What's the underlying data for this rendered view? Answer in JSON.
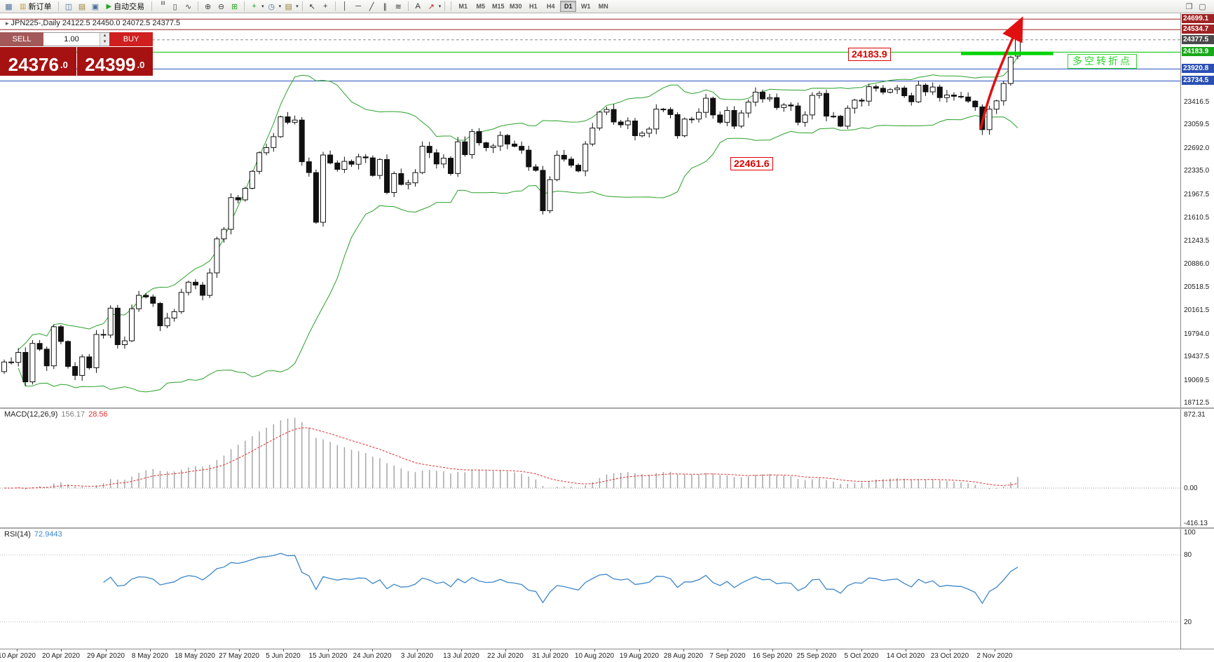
{
  "toolbar": {
    "items": [
      {
        "type": "icon",
        "name": "chart-window-icon",
        "glyph": "▦",
        "color": "#4a6f9c"
      },
      {
        "type": "button",
        "name": "new-order-button",
        "label": "新订单",
        "glyph": "▥",
        "color": "#c09a2e"
      },
      {
        "type": "sep"
      },
      {
        "type": "icon",
        "name": "charts-grid-icon",
        "glyph": "◫",
        "color": "#4a6f9c"
      },
      {
        "type": "icon",
        "name": "profiles-icon",
        "glyph": "▤",
        "color": "#98833a"
      },
      {
        "type": "icon",
        "name": "data-window-icon",
        "glyph": "▣",
        "color": "#4a6f9c"
      },
      {
        "type": "button",
        "name": "auto-trading-button",
        "label": "自动交易",
        "glyph": "▶",
        "color": "#27a327"
      },
      {
        "type": "sep"
      },
      {
        "type": "icon",
        "name": "bars-chart-icon",
        "glyph": "≡",
        "rot": true,
        "color": "#444"
      },
      {
        "type": "icon",
        "name": "candlestick-chart-icon",
        "glyph": "▯",
        "color": "#444"
      },
      {
        "type": "icon",
        "name": "line-chart-icon",
        "glyph": "∿",
        "color": "#444"
      },
      {
        "type": "sep"
      },
      {
        "type": "icon",
        "name": "zoom-in-icon",
        "glyph": "⊕",
        "color": "#444"
      },
      {
        "type": "icon",
        "name": "zoom-out-icon",
        "glyph": "⊖",
        "color": "#444"
      },
      {
        "type": "icon",
        "name": "tile-windows-icon",
        "glyph": "⊞",
        "color": "#27a327"
      },
      {
        "type": "sep"
      },
      {
        "type": "icon",
        "name": "indicators-icon",
        "glyph": "+",
        "color": "#1e9e1e"
      },
      {
        "type": "caret",
        "glyph": "▾"
      },
      {
        "type": "icon",
        "name": "periods-icon",
        "glyph": "◷",
        "color": "#4a6f9c"
      },
      {
        "type": "caret",
        "glyph": "▾"
      },
      {
        "type": "icon",
        "name": "templates-icon",
        "glyph": "▤",
        "color": "#98833a"
      },
      {
        "type": "caret",
        "glyph": "▾"
      },
      {
        "type": "sep"
      },
      {
        "type": "icon",
        "name": "cursor-icon",
        "glyph": "↖",
        "color": "#333"
      },
      {
        "type": "icon",
        "name": "crosshair-icon",
        "glyph": "+",
        "color": "#333"
      },
      {
        "type": "sep"
      },
      {
        "type": "icon",
        "name": "vertical-line-icon",
        "glyph": "│",
        "color": "#333"
      },
      {
        "type": "icon",
        "name": "horizontal-line-icon",
        "glyph": "─",
        "color": "#333"
      },
      {
        "type": "icon",
        "name": "trendline-icon",
        "glyph": "╱",
        "color": "#333"
      },
      {
        "type": "icon",
        "name": "channel-icon",
        "glyph": "∥",
        "color": "#333"
      },
      {
        "type": "icon",
        "name": "fibonacci-icon",
        "glyph": "≋",
        "color": "#333"
      },
      {
        "type": "sep"
      },
      {
        "type": "icon",
        "name": "text-tool-icon",
        "glyph": "A",
        "color": "#333"
      },
      {
        "type": "icon",
        "name": "arrows-tool-icon",
        "glyph": "↗",
        "color": "#b22222"
      },
      {
        "type": "caret",
        "glyph": "▾"
      },
      {
        "type": "sep"
      }
    ],
    "timeframes": [
      "M1",
      "M5",
      "M15",
      "M30",
      "H1",
      "H4",
      "D1",
      "W1",
      "MN"
    ],
    "active_timeframe": "D1",
    "right_icons": [
      {
        "name": "dock-window-icon",
        "glyph": "❐"
      },
      {
        "name": "window-list-icon",
        "glyph": "▢"
      }
    ]
  },
  "order_panel": {
    "sell_label": "SELL",
    "buy_label": "BUY",
    "volume": "1.00",
    "spin_up": "▴",
    "spin_down": "▾",
    "sell_price_main": "24376",
    "sell_price_frac": ".0",
    "buy_price_main": "24399",
    "buy_price_frac": ".0"
  },
  "chart_header": {
    "marker": "▸",
    "title": "JPN225-,Daily 24122.5 24450.0 24072.5 24377.5"
  },
  "annotations": {
    "resistance_label": "24183.9",
    "support_label": "22461.6",
    "pivot_label": "多空转折点"
  },
  "price_axis": {
    "highlights": [
      {
        "label": "24699.1",
        "price": 24699.1,
        "bg": "#9e2424"
      },
      {
        "label": "24534.7",
        "price": 24534.7,
        "bg": "#9e2424"
      },
      {
        "label": "24377.5",
        "price": 24377.5,
        "bg": "#4a4a4a"
      },
      {
        "label": "24183.9",
        "price": 24183.9,
        "bg": "#18a818"
      },
      {
        "label": "23920.8",
        "price": 23920.8,
        "bg": "#2b50b4"
      },
      {
        "label": "23734.5",
        "price": 23734.5,
        "bg": "#2b50b4"
      }
    ]
  },
  "chart_data": {
    "type": "candlestick",
    "symbol": "JPN225-",
    "period": "Daily",
    "ohlc_current": {
      "open": 24122.5,
      "high": 24450.0,
      "low": 24072.5,
      "close": 24377.5
    },
    "price_range": [
      18630,
      24790
    ],
    "price_ticks": [
      23416.5,
      23059.5,
      22692.0,
      22335.0,
      21967.5,
      21610.5,
      21243.5,
      20886.0,
      20518.5,
      20161.5,
      19794.0,
      19437.5,
      19069.5,
      18712.5
    ],
    "x_labels": [
      "10 Apr 2020",
      "20 Apr 2020",
      "29 Apr 2020",
      "8 May 2020",
      "18 May 2020",
      "27 May 2020",
      "5 Jun 2020",
      "15 Jun 2020",
      "24 Jun 2020",
      "3 Jul 2020",
      "13 Jul 2020",
      "22 Jul 2020",
      "31 Jul 2020",
      "10 Aug 2020",
      "19 Aug 2020",
      "28 Aug 2020",
      "7 Sep 2020",
      "16 Sep 2020",
      "25 Sep 2020",
      "5 Oct 2020",
      "14 Oct 2020",
      "23 Oct 2020",
      "2 Nov 2020"
    ],
    "closes": [
      19350,
      19345,
      19500,
      19040,
      19640,
      19550,
      19290,
      19900,
      19670,
      19280,
      19140,
      19430,
      19260,
      19780,
      19770,
      20190,
      19620,
      19680,
      20180,
      20390,
      20365,
      20265,
      19915,
      20035,
      20135,
      20435,
      20595,
      20550,
      20390,
      20740,
      21270,
      21420,
      21915,
      21880,
      22060,
      22325,
      22615,
      22695,
      22865,
      23175,
      23090,
      23125,
      22475,
      22305,
      21530,
      22580,
      22455,
      22355,
      22480,
      22435,
      22550,
      22535,
      22260,
      22510,
      21995,
      22290,
      22120,
      22145,
      22305,
      22715,
      22615,
      22440,
      22530,
      22290,
      22785,
      22585,
      22945,
      22770,
      22695,
      22720,
      22885,
      22750,
      22715,
      22655,
      22395,
      22340,
      21710,
      22195,
      22575,
      22515,
      22420,
      22330,
      22750,
      23000,
      23250,
      23290,
      23095,
      23050,
      23110,
      22880,
      22920,
      22985,
      23295,
      23290,
      23210,
      22880,
      23140,
      23140,
      23245,
      23465,
      23205,
      23090,
      23275,
      23030,
      23235,
      23405,
      23560,
      23455,
      23475,
      23320,
      23360,
      23345,
      23090,
      23205,
      23510,
      23540,
      23185,
      23185,
      23030,
      23310,
      23435,
      23420,
      23645,
      23620,
      23560,
      23600,
      23625,
      23505,
      23410,
      23670,
      23565,
      23640,
      23475,
      23515,
      23495,
      23485,
      23420,
      23330,
      22975,
      23295,
      23425,
      23695,
      24105,
      24377.5
    ],
    "bollinger": {
      "period": 20,
      "deviation": 2,
      "color": "#2aa12a"
    },
    "hlines": [
      {
        "price": 24699.1,
        "color": "#9e2424",
        "width": 1
      },
      {
        "price": 24534.7,
        "color": "#9e2424",
        "width": 1
      },
      {
        "price": 24183.9,
        "color": "#00c000",
        "width": 1
      },
      {
        "price": 23920.8,
        "color": "#2a52be",
        "width": 1
      },
      {
        "price": 23734.5,
        "color": "#2a52be",
        "width": 1
      }
    ],
    "current_price": 24377.5,
    "objects": {
      "thick_segment": {
        "price": 24165,
        "i1": 135,
        "i2": 148,
        "color": "#00d300",
        "width": 5
      },
      "arrow": {
        "i1": 137.8,
        "price1": 23000,
        "i2": 143.3,
        "price2": 24640,
        "color": "#e01010",
        "width": 3.5
      }
    },
    "macd": {
      "name": "MACD(12,26,9)",
      "main": "156.17",
      "signal": "28.56",
      "params": [
        12,
        26,
        9
      ],
      "range": [
        -473,
        947
      ],
      "axis": [
        {
          "label": "872.31",
          "v": 872.31
        },
        {
          "label": "0.00",
          "v": 0
        },
        {
          "label": "-416.13",
          "v": -416.13
        }
      ],
      "bar_color": "#a6a6a6",
      "signal_color": "#e03030"
    },
    "rsi": {
      "name": "RSI(14)",
      "value": "72.9443",
      "period": 14,
      "range": [
        -4,
        104
      ],
      "levels": [
        80,
        20
      ],
      "axis": [
        {
          "label": "100",
          "v": 100
        },
        {
          "label": "80",
          "v": 80
        },
        {
          "label": "20",
          "v": 20
        }
      ],
      "color": "#3d86c8"
    }
  }
}
